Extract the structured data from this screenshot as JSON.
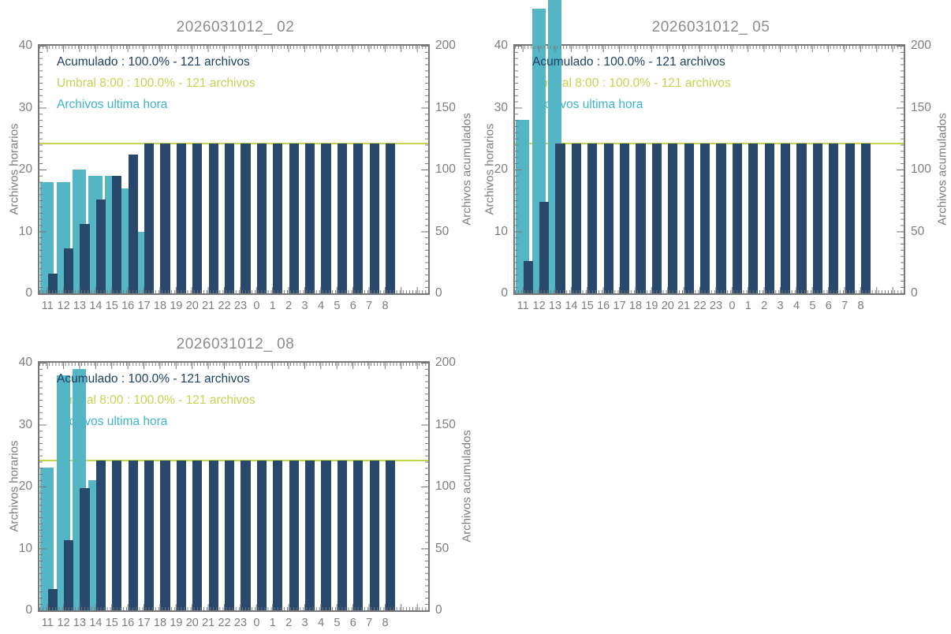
{
  "page": {
    "background": "#ffffff"
  },
  "colors": {
    "accumulated_bar": "#29496c",
    "accumulated_text": "#1f4063",
    "hourly_bar": "#54b6c5",
    "hourly_text": "#3fb3cb",
    "threshold": "#c6d351",
    "axis_frame": "#787878",
    "tick_label": "#7d7d7d",
    "title": "#8c8c8c"
  },
  "chart_data": [
    {
      "type": "bar",
      "title": "2026031012_ 02",
      "categories": [
        "11",
        "12",
        "13",
        "14",
        "15",
        "16",
        "17",
        "18",
        "19",
        "20",
        "21",
        "22",
        "23",
        "0",
        "1",
        "2",
        "3",
        "4",
        "5",
        "6",
        "7",
        "8"
      ],
      "series": [
        {
          "name": "Archivos ultima hora",
          "axis": "left",
          "color": "#54b6c5",
          "values": [
            18,
            18,
            20,
            19,
            19,
            17,
            10,
            0,
            0,
            0,
            0,
            0,
            0,
            0,
            0,
            0,
            0,
            0,
            0,
            0,
            0,
            0
          ]
        },
        {
          "name": "Acumulado",
          "axis": "right",
          "color": "#29496c",
          "values": [
            16,
            36,
            56,
            76,
            95,
            112,
            121,
            121,
            121,
            121,
            121,
            121,
            121,
            121,
            121,
            121,
            121,
            121,
            121,
            121,
            121,
            121
          ]
        }
      ],
      "threshold": {
        "name": "Umbral 8:00",
        "axis": "right",
        "value": 121,
        "color": "#c6d351"
      },
      "legend": {
        "acumulado": "Acumulado : 100.0% - 121 archivos",
        "umbral": "Umbral 8:00 : 100.0% - 121 archivos",
        "ultima_hora": "Archivos ultima hora"
      },
      "ylabel_left": "Archivos horarios",
      "ylabel_right": "Archivos acumulados",
      "ylim_left": [
        0,
        40
      ],
      "ylim_right": [
        0,
        200
      ],
      "yticks_left": [
        0,
        10,
        20,
        30,
        40
      ],
      "yticks_right": [
        0,
        50,
        100,
        150,
        200
      ],
      "grid": false,
      "legend_position": "top-left"
    },
    {
      "type": "bar",
      "title": "2026031012_ 05",
      "categories": [
        "11",
        "12",
        "13",
        "14",
        "15",
        "16",
        "17",
        "18",
        "19",
        "20",
        "21",
        "22",
        "23",
        "0",
        "1",
        "2",
        "3",
        "4",
        "5",
        "6",
        "7",
        "8"
      ],
      "series": [
        {
          "name": "Archivos ultima hora",
          "axis": "left",
          "color": "#54b6c5",
          "values": [
            28,
            46,
            48,
            0,
            0,
            0,
            0,
            0,
            0,
            0,
            0,
            0,
            0,
            0,
            0,
            0,
            0,
            0,
            0,
            0,
            0,
            0
          ]
        },
        {
          "name": "Acumulado",
          "axis": "right",
          "color": "#29496c",
          "values": [
            26,
            74,
            121,
            121,
            121,
            121,
            121,
            121,
            121,
            121,
            121,
            121,
            121,
            121,
            121,
            121,
            121,
            121,
            121,
            121,
            121,
            121
          ]
        }
      ],
      "threshold": {
        "name": "Umbral 8:00",
        "axis": "right",
        "value": 121,
        "color": "#c6d351"
      },
      "legend": {
        "acumulado": "Acumulado : 100.0% - 121 archivos",
        "umbral": "Umbral 8:00 : 100.0% - 121 archivos",
        "ultima_hora": "Archivos ultima hora"
      },
      "ylabel_left": "Archivos horarios",
      "ylabel_right": "Archivos acumulados",
      "ylim_left": [
        0,
        40
      ],
      "ylim_right": [
        0,
        200
      ],
      "yticks_left": [
        0,
        10,
        20,
        30,
        40
      ],
      "yticks_right": [
        0,
        50,
        100,
        150,
        200
      ],
      "grid": false,
      "legend_position": "top-left"
    },
    {
      "type": "bar",
      "title": "2026031012_ 08",
      "categories": [
        "11",
        "12",
        "13",
        "14",
        "15",
        "16",
        "17",
        "18",
        "19",
        "20",
        "21",
        "22",
        "23",
        "0",
        "1",
        "2",
        "3",
        "4",
        "5",
        "6",
        "7",
        "8"
      ],
      "series": [
        {
          "name": "Archivos ultima hora",
          "axis": "left",
          "color": "#54b6c5",
          "values": [
            23,
            38,
            39,
            21,
            0,
            0,
            0,
            0,
            0,
            0,
            0,
            0,
            0,
            0,
            0,
            0,
            0,
            0,
            0,
            0,
            0,
            0
          ]
        },
        {
          "name": "Acumulado",
          "axis": "right",
          "color": "#29496c",
          "values": [
            17,
            57,
            99,
            121,
            121,
            121,
            121,
            121,
            121,
            121,
            121,
            121,
            121,
            121,
            121,
            121,
            121,
            121,
            121,
            121,
            121,
            121
          ]
        }
      ],
      "threshold": {
        "name": "Umbral 8:00",
        "axis": "right",
        "value": 121,
        "color": "#c6d351"
      },
      "legend": {
        "acumulado": "Acumulado : 100.0% - 121 archivos",
        "umbral": "Umbral 8:00 : 100.0% - 121 archivos",
        "ultima_hora": "Archivos ultima hora"
      },
      "ylabel_left": "Archivos horarios",
      "ylabel_right": "Archivos acumulados",
      "ylim_left": [
        0,
        40
      ],
      "ylim_right": [
        0,
        200
      ],
      "yticks_left": [
        0,
        10,
        20,
        30,
        40
      ],
      "yticks_right": [
        0,
        50,
        100,
        150,
        200
      ],
      "grid": false,
      "legend_position": "top-left"
    }
  ]
}
